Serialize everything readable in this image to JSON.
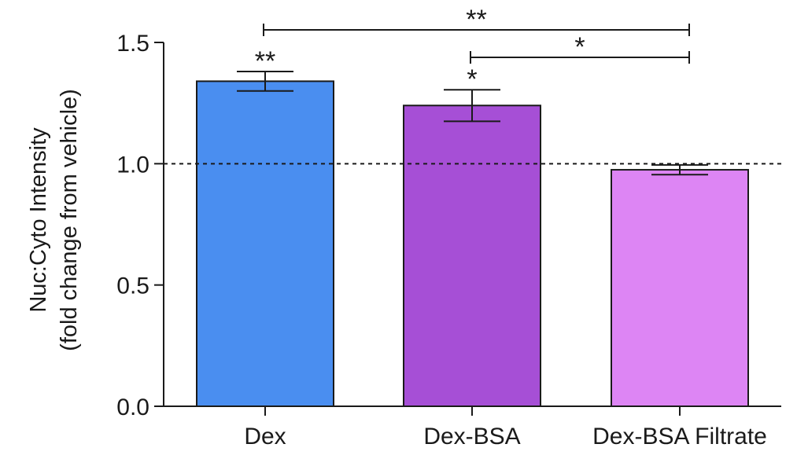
{
  "chart_data": {
    "type": "bar",
    "title": "",
    "xlabel": "",
    "ylabel": [
      "Nuc:Cyto Intensity",
      "(fold change from vehicle)"
    ],
    "ylim": [
      0,
      1.5
    ],
    "yticks": [
      "0.0",
      "0.5",
      "1.0",
      "1.5"
    ],
    "reference_line": 1.0,
    "categories": [
      "Dex",
      "Dex-BSA",
      "Dex-BSA Filtrate"
    ],
    "values": [
      1.34,
      1.24,
      0.975
    ],
    "errors": [
      0.04,
      0.065,
      0.02
    ],
    "colors": [
      "#4a8ef0",
      "#a64fd6",
      "#dd85f4"
    ],
    "bar_annotations": [
      "**",
      "*",
      ""
    ],
    "comparisons": [
      {
        "from": "Dex",
        "to": "Dex-BSA Filtrate",
        "label": "**"
      },
      {
        "from": "Dex-BSA",
        "to": "Dex-BSA Filtrate",
        "label": "*"
      }
    ]
  }
}
